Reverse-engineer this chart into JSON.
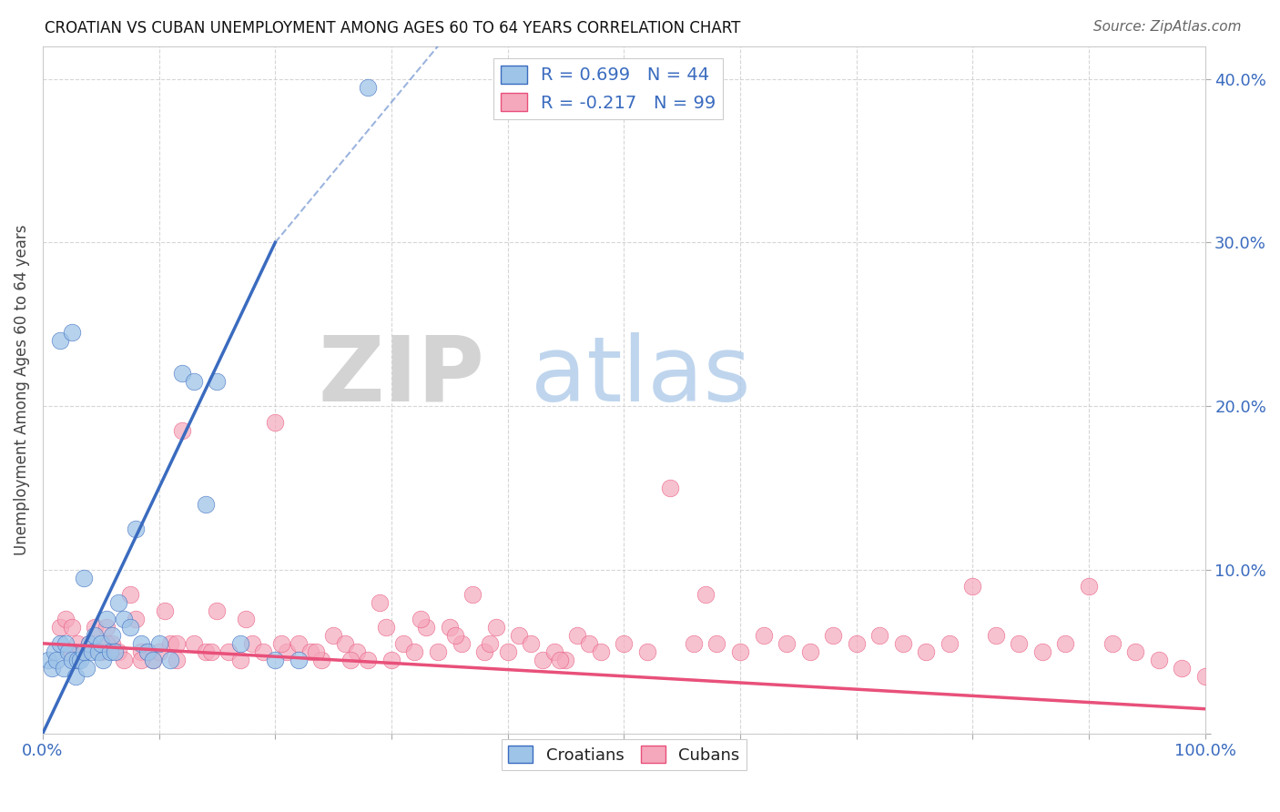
{
  "title": "CROATIAN VS CUBAN UNEMPLOYMENT AMONG AGES 60 TO 64 YEARS CORRELATION CHART",
  "source": "Source: ZipAtlas.com",
  "ylabel": "Unemployment Among Ages 60 to 64 years",
  "xlim": [
    0,
    100
  ],
  "ylim": [
    0,
    42
  ],
  "x_ticks": [
    0,
    10,
    20,
    30,
    40,
    50,
    60,
    70,
    80,
    90,
    100
  ],
  "y_ticks": [
    0,
    10,
    20,
    30,
    40
  ],
  "croatian_color": "#9ec4e8",
  "cuban_color": "#f5a8bc",
  "regression_croatian_color": "#3a6bbf",
  "regression_cuban_color": "#e8507a",
  "watermark_ZIP_color": "#cccccc",
  "watermark_atlas_color": "#aac4e0",
  "croatian_R": 0.699,
  "croatian_N": 44,
  "cuban_R": -0.217,
  "cuban_N": 99,
  "cr_line_x0": 0.0,
  "cr_line_y0": 0.0,
  "cr_line_x1": 20.0,
  "cr_line_y1": 30.0,
  "cr_dash_x0": 20.0,
  "cr_dash_y0": 30.0,
  "cr_dash_x1": 34.0,
  "cr_dash_y1": 42.0,
  "cu_line_x0": 0.0,
  "cu_line_y0": 5.5,
  "cu_line_x1": 100.0,
  "cu_line_y1": 1.5,
  "croatian_scatter_x": [
    0.5,
    0.8,
    1.0,
    1.2,
    1.5,
    1.8,
    2.0,
    2.2,
    2.5,
    2.8,
    3.0,
    3.2,
    3.5,
    3.8,
    4.0,
    4.2,
    4.5,
    4.8,
    5.0,
    5.2,
    5.5,
    5.8,
    6.0,
    6.2,
    6.5,
    7.0,
    7.5,
    8.0,
    8.5,
    9.0,
    9.5,
    10.0,
    11.0,
    12.0,
    13.0,
    14.0,
    15.0,
    17.0,
    20.0,
    22.0,
    1.5,
    2.5,
    3.5,
    28.0
  ],
  "croatian_scatter_y": [
    4.5,
    4.0,
    5.0,
    4.5,
    5.5,
    4.0,
    5.5,
    5.0,
    4.5,
    3.5,
    4.5,
    4.5,
    5.0,
    4.0,
    5.5,
    5.0,
    6.0,
    5.0,
    5.5,
    4.5,
    7.0,
    5.0,
    6.0,
    5.0,
    8.0,
    7.0,
    6.5,
    12.5,
    5.5,
    5.0,
    4.5,
    5.5,
    4.5,
    22.0,
    21.5,
    14.0,
    21.5,
    5.5,
    4.5,
    4.5,
    24.0,
    24.5,
    9.5,
    39.5
  ],
  "cuban_scatter_x": [
    1.5,
    2.0,
    2.5,
    3.0,
    3.5,
    4.0,
    4.5,
    5.0,
    5.5,
    6.0,
    6.5,
    7.0,
    7.5,
    8.0,
    8.5,
    9.0,
    9.5,
    10.0,
    10.5,
    11.0,
    11.5,
    12.0,
    13.0,
    14.0,
    15.0,
    16.0,
    17.0,
    18.0,
    19.0,
    20.0,
    21.0,
    22.0,
    23.0,
    24.0,
    25.0,
    26.0,
    27.0,
    28.0,
    29.0,
    30.0,
    31.0,
    32.0,
    33.0,
    34.0,
    35.0,
    36.0,
    37.0,
    38.0,
    39.0,
    40.0,
    41.0,
    42.0,
    43.0,
    44.0,
    45.0,
    46.0,
    47.0,
    48.0,
    50.0,
    52.0,
    54.0,
    56.0,
    58.0,
    60.0,
    62.0,
    64.0,
    66.0,
    68.0,
    70.0,
    72.0,
    74.0,
    76.0,
    78.0,
    80.0,
    82.0,
    84.0,
    86.0,
    88.0,
    90.0,
    92.0,
    94.0,
    96.0,
    98.0,
    100.0,
    2.5,
    5.5,
    8.5,
    11.5,
    14.5,
    17.5,
    20.5,
    23.5,
    26.5,
    29.5,
    32.5,
    35.5,
    38.5,
    44.5,
    57.0
  ],
  "cuban_scatter_y": [
    6.5,
    7.0,
    5.0,
    5.5,
    5.0,
    5.5,
    6.5,
    5.0,
    6.5,
    5.5,
    5.0,
    4.5,
    8.5,
    7.0,
    5.0,
    5.0,
    4.5,
    5.0,
    7.5,
    5.5,
    4.5,
    18.5,
    5.5,
    5.0,
    7.5,
    5.0,
    4.5,
    5.5,
    5.0,
    19.0,
    5.0,
    5.5,
    5.0,
    4.5,
    6.0,
    5.5,
    5.0,
    4.5,
    8.0,
    4.5,
    5.5,
    5.0,
    6.5,
    5.0,
    6.5,
    5.5,
    8.5,
    5.0,
    6.5,
    5.0,
    6.0,
    5.5,
    4.5,
    5.0,
    4.5,
    6.0,
    5.5,
    5.0,
    5.5,
    5.0,
    15.0,
    5.5,
    5.5,
    5.0,
    6.0,
    5.5,
    5.0,
    6.0,
    5.5,
    6.0,
    5.5,
    5.0,
    5.5,
    9.0,
    6.0,
    5.5,
    5.0,
    5.5,
    9.0,
    5.5,
    5.0,
    4.5,
    4.0,
    3.5,
    6.5,
    5.5,
    4.5,
    5.5,
    5.0,
    7.0,
    5.5,
    5.0,
    4.5,
    6.5,
    7.0,
    6.0,
    5.5,
    4.5,
    8.5
  ]
}
